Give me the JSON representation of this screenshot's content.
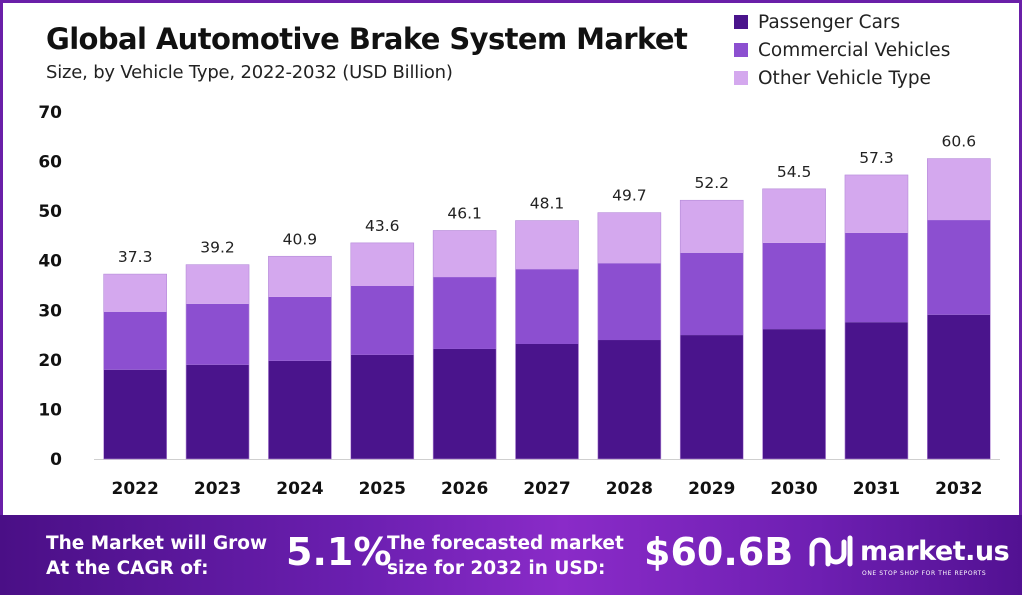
{
  "header": {
    "title": "Global Automotive Brake System Market",
    "subtitle": "Size, by Vehicle Type, 2022-2032 (USD Billion)"
  },
  "colors": {
    "passenger_cars": "#4a148c",
    "commercial_vehicles": "#8c4fd0",
    "other_vehicle_type": "#d4a8ee",
    "frame": "#6a1fa8"
  },
  "chart_data": {
    "type": "bar",
    "stacked": true,
    "title": "Global Automotive Brake System Market",
    "subtitle": "Size, by Vehicle Type, 2022-2032 (USD Billion)",
    "xlabel": "",
    "ylabel": "",
    "ylim": [
      0,
      70
    ],
    "yticks": [
      0,
      10,
      20,
      30,
      40,
      50,
      60,
      70
    ],
    "grid": false,
    "legend_position": "top-right",
    "categories": [
      "2022",
      "2023",
      "2024",
      "2025",
      "2026",
      "2027",
      "2028",
      "2029",
      "2030",
      "2031",
      "2032"
    ],
    "series": [
      {
        "name": "Passenger Cars",
        "color": "#4a148c",
        "values": [
          18.0,
          19.0,
          19.8,
          21.0,
          22.2,
          23.2,
          24.0,
          25.0,
          26.2,
          27.6,
          29.1
        ]
      },
      {
        "name": "Commercial Vehicles",
        "color": "#8c4fd0",
        "values": [
          11.7,
          12.3,
          12.9,
          13.9,
          14.5,
          15.1,
          15.5,
          16.6,
          17.4,
          18.0,
          19.1
        ]
      },
      {
        "name": "Other Vehicle Type",
        "color": "#d4a8ee",
        "values": [
          7.6,
          7.9,
          8.2,
          8.7,
          9.4,
          9.8,
          10.2,
          10.6,
          10.9,
          11.7,
          12.4
        ]
      }
    ],
    "totals": [
      37.3,
      39.2,
      40.9,
      43.6,
      46.1,
      48.1,
      49.7,
      52.2,
      54.5,
      57.3,
      60.6
    ],
    "total_labels": [
      "37.3",
      "39.2",
      "40.9",
      "43.6",
      "46.1",
      "48.1",
      "49.7",
      "52.2",
      "54.5",
      "57.3",
      "60.6"
    ]
  },
  "footer": {
    "cagr_label_line1": "The Market will Grow",
    "cagr_label_line2": "At the CAGR of:",
    "cagr_value": "5.1%",
    "forecast_label_line1": "The forecasted market",
    "forecast_label_line2": "size for 2032 in USD:",
    "forecast_value": "$60.6B",
    "brand_name": "market.us",
    "brand_tagline": "ONE STOP SHOP FOR THE REPORTS"
  }
}
